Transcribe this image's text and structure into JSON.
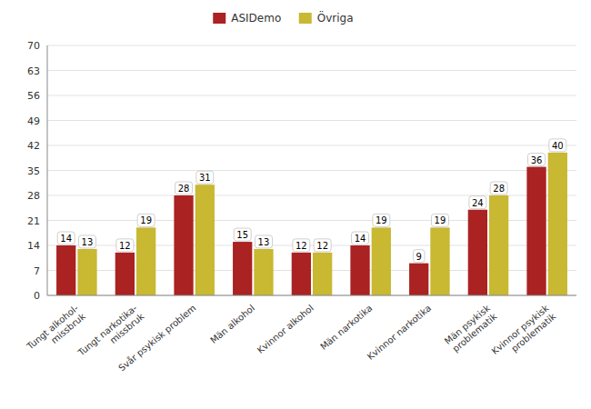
{
  "chart_data": {
    "type": "bar",
    "categories": [
      "Tungt alkohol-\nmissbruk",
      "Tungt narkotika-\nmissbruk",
      "Svår psykisk problem",
      "Män alkohol",
      "Kvinnor alkohol",
      "Män narkotika",
      "Kvinnor narkotika",
      "Män psykisk\nproblematik",
      "Kvinnor psykisk\nproblematik"
    ],
    "series": [
      {
        "name": "ASIDemo",
        "color": "#aa2222",
        "values": [
          14,
          12,
          28,
          15,
          12,
          14,
          9,
          24,
          36
        ]
      },
      {
        "name": "Övriga",
        "color": "#c8b832",
        "values": [
          13,
          19,
          31,
          13,
          12,
          19,
          19,
          28,
          40
        ]
      }
    ],
    "ylim": [
      0,
      70
    ],
    "yticks": [
      0,
      7,
      14,
      21,
      28,
      35,
      42,
      49,
      56,
      63,
      70
    ],
    "grid": true,
    "legend": "top",
    "data_labels": true
  }
}
